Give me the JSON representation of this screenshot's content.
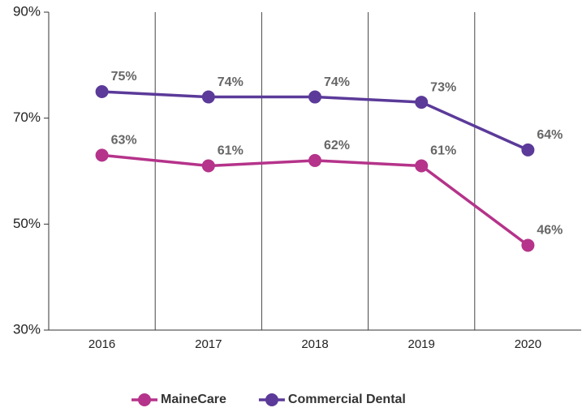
{
  "chart_data": {
    "type": "line",
    "categories": [
      "2016",
      "2017",
      "2018",
      "2019",
      "2020"
    ],
    "series": [
      {
        "name": "MaineCare",
        "color": "#b5338a",
        "values": [
          63,
          61,
          62,
          61,
          46
        ],
        "value_labels": [
          "63%",
          "61%",
          "62%",
          "61%",
          "46%"
        ]
      },
      {
        "name": "Commercial Dental",
        "color": "#5b3a99",
        "values": [
          75,
          74,
          74,
          73,
          64
        ],
        "value_labels": [
          "75%",
          "74%",
          "74%",
          "73%",
          "64%"
        ]
      }
    ],
    "ylim": [
      30,
      90
    ],
    "yticks": [
      {
        "value": 30,
        "label": "30%"
      },
      {
        "value": 50,
        "label": "50%"
      },
      {
        "value": 70,
        "label": "70%"
      },
      {
        "value": 90,
        "label": "90%"
      }
    ],
    "legend": "bottom"
  }
}
